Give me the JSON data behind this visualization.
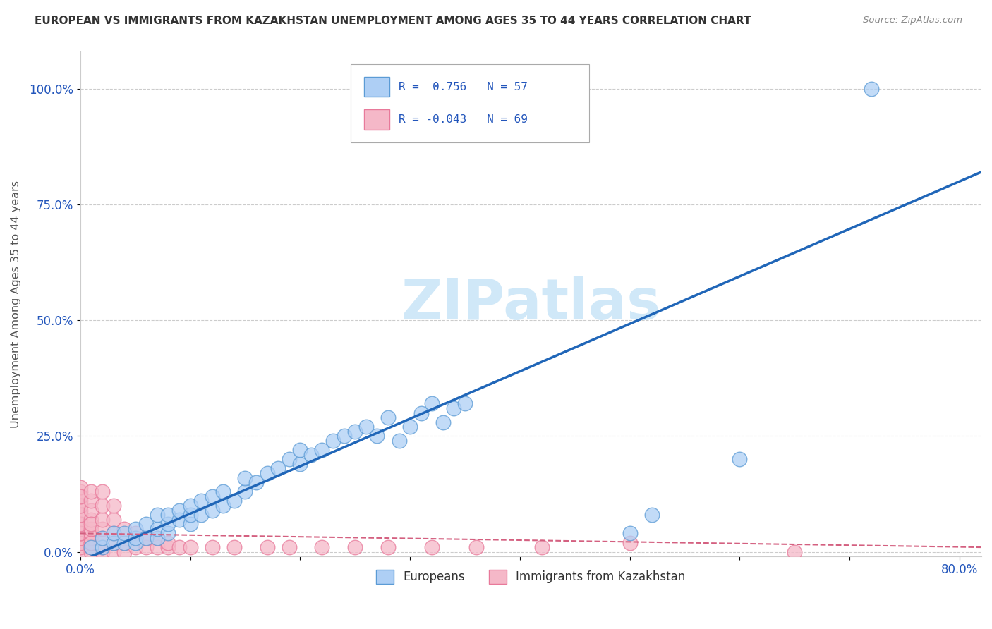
{
  "title": "EUROPEAN VS IMMIGRANTS FROM KAZAKHSTAN UNEMPLOYMENT AMONG AGES 35 TO 44 YEARS CORRELATION CHART",
  "source": "Source: ZipAtlas.com",
  "ylabel": "Unemployment Among Ages 35 to 44 years",
  "xlim": [
    0.0,
    0.82
  ],
  "ylim": [
    -0.01,
    1.08
  ],
  "xticks": [
    0.0,
    0.1,
    0.2,
    0.3,
    0.4,
    0.5,
    0.6,
    0.7,
    0.8
  ],
  "yticks": [
    0.0,
    0.25,
    0.5,
    0.75,
    1.0
  ],
  "ytick_labels": [
    "0.0%",
    "25.0%",
    "50.0%",
    "75.0%",
    "100.0%"
  ],
  "xtick_labels": [
    "0.0%",
    "",
    "",
    "",
    "",
    "",
    "",
    "",
    "80.0%"
  ],
  "blue_R": 0.756,
  "blue_N": 57,
  "pink_R": -0.043,
  "pink_N": 69,
  "blue_color": "#aecff5",
  "pink_color": "#f5b8c8",
  "blue_edge_color": "#5b9bd5",
  "pink_edge_color": "#e8799a",
  "blue_line_color": "#2066b8",
  "pink_line_color": "#d46080",
  "watermark_color": "#d0e8f8",
  "blue_scatter_x": [
    0.01,
    0.02,
    0.02,
    0.03,
    0.03,
    0.04,
    0.04,
    0.05,
    0.05,
    0.05,
    0.06,
    0.06,
    0.07,
    0.07,
    0.07,
    0.08,
    0.08,
    0.08,
    0.09,
    0.09,
    0.1,
    0.1,
    0.1,
    0.11,
    0.11,
    0.12,
    0.12,
    0.13,
    0.13,
    0.14,
    0.15,
    0.15,
    0.16,
    0.17,
    0.18,
    0.19,
    0.2,
    0.2,
    0.21,
    0.22,
    0.23,
    0.24,
    0.25,
    0.26,
    0.27,
    0.28,
    0.29,
    0.3,
    0.31,
    0.32,
    0.33,
    0.34,
    0.35,
    0.5,
    0.52,
    0.6,
    0.72
  ],
  "blue_scatter_y": [
    0.01,
    0.01,
    0.03,
    0.02,
    0.04,
    0.02,
    0.04,
    0.02,
    0.03,
    0.05,
    0.03,
    0.06,
    0.03,
    0.05,
    0.08,
    0.04,
    0.06,
    0.08,
    0.07,
    0.09,
    0.06,
    0.08,
    0.1,
    0.08,
    0.11,
    0.09,
    0.12,
    0.1,
    0.13,
    0.11,
    0.13,
    0.16,
    0.15,
    0.17,
    0.18,
    0.2,
    0.19,
    0.22,
    0.21,
    0.22,
    0.24,
    0.25,
    0.26,
    0.27,
    0.25,
    0.29,
    0.24,
    0.27,
    0.3,
    0.32,
    0.28,
    0.31,
    0.32,
    0.04,
    0.08,
    0.2,
    1.0
  ],
  "pink_scatter_x": [
    0.0,
    0.0,
    0.0,
    0.0,
    0.0,
    0.0,
    0.0,
    0.0,
    0.0,
    0.0,
    0.0,
    0.0,
    0.0,
    0.0,
    0.0,
    0.0,
    0.0,
    0.0,
    0.0,
    0.0,
    0.01,
    0.01,
    0.01,
    0.01,
    0.01,
    0.01,
    0.01,
    0.01,
    0.01,
    0.01,
    0.01,
    0.01,
    0.02,
    0.02,
    0.02,
    0.02,
    0.02,
    0.02,
    0.02,
    0.03,
    0.03,
    0.03,
    0.03,
    0.03,
    0.04,
    0.04,
    0.04,
    0.05,
    0.05,
    0.06,
    0.06,
    0.07,
    0.07,
    0.08,
    0.08,
    0.09,
    0.1,
    0.12,
    0.14,
    0.17,
    0.19,
    0.22,
    0.25,
    0.28,
    0.32,
    0.36,
    0.42,
    0.5,
    0.65
  ],
  "pink_scatter_y": [
    0.0,
    0.01,
    0.02,
    0.03,
    0.04,
    0.05,
    0.06,
    0.07,
    0.08,
    0.09,
    0.1,
    0.11,
    0.12,
    0.13,
    0.14,
    0.04,
    0.06,
    0.08,
    0.1,
    0.12,
    0.0,
    0.01,
    0.02,
    0.03,
    0.04,
    0.05,
    0.07,
    0.09,
    0.11,
    0.13,
    0.02,
    0.06,
    0.0,
    0.01,
    0.03,
    0.05,
    0.07,
    0.1,
    0.13,
    0.0,
    0.02,
    0.04,
    0.07,
    0.1,
    0.0,
    0.02,
    0.05,
    0.01,
    0.04,
    0.01,
    0.03,
    0.01,
    0.03,
    0.01,
    0.02,
    0.01,
    0.01,
    0.01,
    0.01,
    0.01,
    0.01,
    0.01,
    0.01,
    0.01,
    0.01,
    0.01,
    0.01,
    0.02,
    0.0
  ],
  "blue_trend_x": [
    0.0,
    0.82
  ],
  "blue_trend_y": [
    -0.02,
    0.82
  ],
  "pink_trend_x": [
    0.0,
    0.82
  ],
  "pink_trend_y": [
    0.04,
    0.01
  ]
}
